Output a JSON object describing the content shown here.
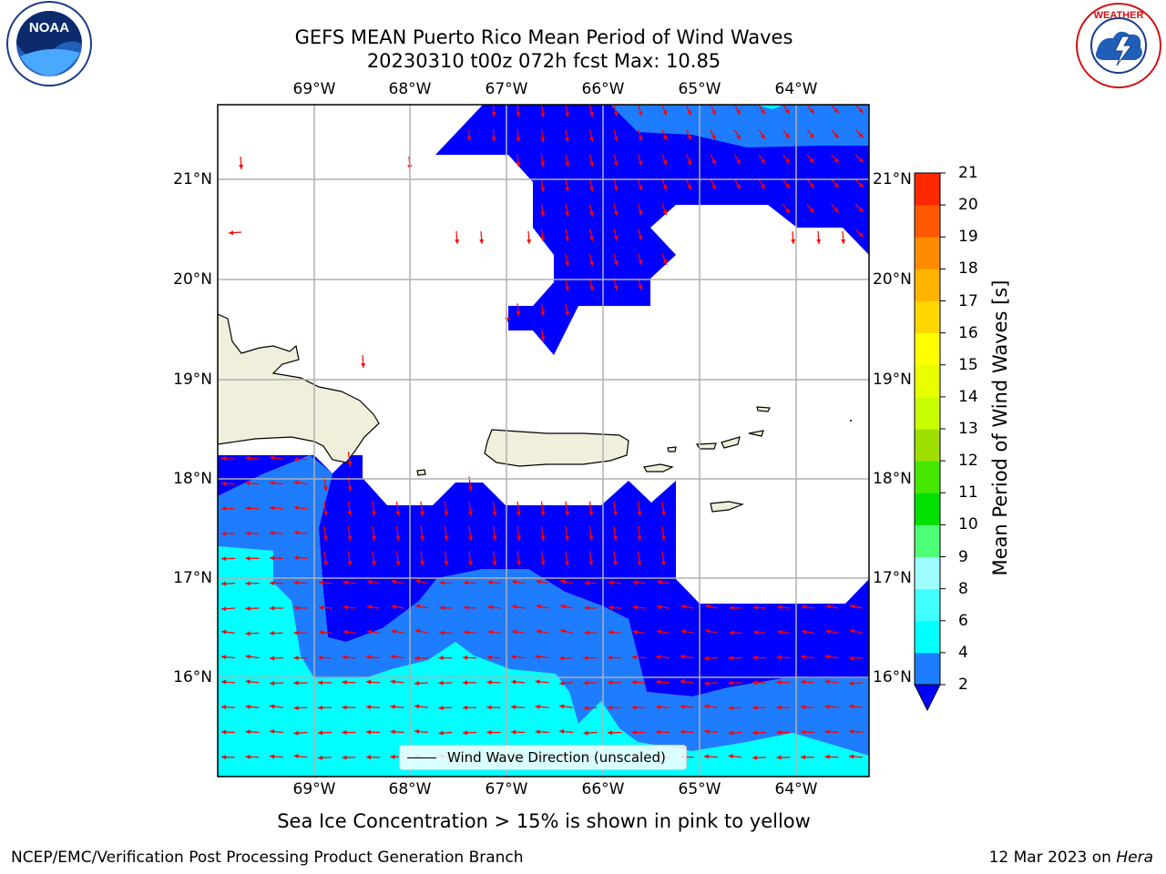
{
  "title_line1": "GEFS MEAN Puerto Rico Mean Period of Wind Waves",
  "title_line2": "20230310 t00z 072h fcst    Max: 10.85",
  "lon_labels": [
    "69°W",
    "68°W",
    "67°W",
    "66°W",
    "65°W",
    "64°W"
  ],
  "lat_labels": [
    "21°N",
    "20°N",
    "19°N",
    "18°N",
    "17°N",
    "16°N"
  ],
  "legend_text": "Wind Wave Direction (unscaled)",
  "colorbar": {
    "label": "Mean Period of Wind Waves [s]",
    "ticks": [
      "2",
      "4",
      "6",
      "8",
      "9",
      "10",
      "11",
      "12",
      "13",
      "14",
      "15",
      "16",
      "17",
      "18",
      "19",
      "20",
      "21"
    ],
    "colors": [
      "#0000ff",
      "#1e7dff",
      "#00ffff",
      "#40ffff",
      "#9ffffc",
      "#4dff78",
      "#00e000",
      "#47e800",
      "#9de000",
      "#c8ff00",
      "#e8ff00",
      "#ffff00",
      "#ffd700",
      "#ffb400",
      "#ff8c00",
      "#ff5a00",
      "#ff2800",
      "#ff0000"
    ]
  },
  "footer_note": "Sea Ice Concentration > 15% is shown in pink to yellow",
  "credit_left": "NCEP/EMC/Verification Post Processing Product Generation Branch",
  "credit_date": "12 Mar 2023 on ",
  "credit_host": "Hera",
  "logos": {
    "left": "noaa-logo",
    "right": "nws-logo"
  }
}
